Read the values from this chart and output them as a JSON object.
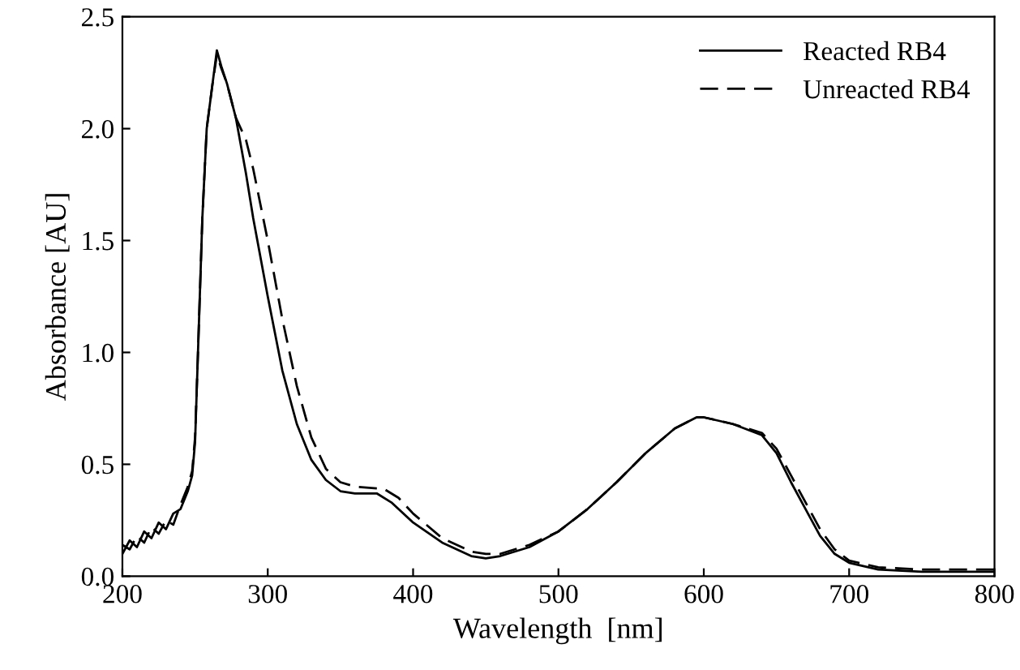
{
  "chart_data": {
    "type": "line",
    "xlabel": "Wavelength  [nm]",
    "ylabel": "Absorbance [AU]",
    "xlim": [
      200,
      800
    ],
    "ylim": [
      0,
      2.5
    ],
    "xticks": [
      200,
      300,
      400,
      500,
      600,
      700,
      800
    ],
    "yticks": [
      {
        "value": 0,
        "label": "0.0"
      },
      {
        "value": 0.5,
        "label": "0.5"
      },
      {
        "value": 1,
        "label": "1.0"
      },
      {
        "value": 1.5,
        "label": "1.5"
      },
      {
        "value": 2,
        "label": "2.0"
      },
      {
        "value": 2.5,
        "label": "2.5"
      }
    ],
    "legend": "top right",
    "grid": false,
    "series": [
      {
        "name": "Reacted RB4",
        "color": "#000000",
        "line_style": "solid",
        "x": [
          200,
          205,
          210,
          215,
          220,
          225,
          230,
          235,
          240,
          245,
          248,
          250,
          252,
          255,
          258,
          262,
          265,
          268,
          272,
          278,
          285,
          290,
          300,
          310,
          320,
          330,
          340,
          350,
          360,
          375,
          385,
          400,
          420,
          440,
          450,
          460,
          480,
          500,
          520,
          540,
          560,
          580,
          595,
          600,
          620,
          640,
          650,
          660,
          670,
          680,
          690,
          700,
          720,
          750,
          800
        ],
        "values": [
          0.1,
          0.16,
          0.13,
          0.2,
          0.17,
          0.24,
          0.21,
          0.28,
          0.3,
          0.38,
          0.45,
          0.6,
          1.0,
          1.6,
          2.0,
          2.2,
          2.35,
          2.28,
          2.2,
          2.05,
          1.8,
          1.6,
          1.25,
          0.92,
          0.68,
          0.52,
          0.43,
          0.38,
          0.37,
          0.37,
          0.33,
          0.24,
          0.15,
          0.09,
          0.08,
          0.09,
          0.13,
          0.2,
          0.3,
          0.42,
          0.55,
          0.66,
          0.71,
          0.71,
          0.68,
          0.63,
          0.55,
          0.42,
          0.3,
          0.18,
          0.1,
          0.06,
          0.03,
          0.02,
          0.02
        ]
      },
      {
        "name": "Unreacted RB4",
        "color": "#000000",
        "line_style": "dashed",
        "x": [
          200,
          205,
          210,
          215,
          220,
          225,
          230,
          235,
          240,
          245,
          248,
          250,
          252,
          255,
          258,
          262,
          265,
          268,
          272,
          278,
          285,
          290,
          300,
          310,
          320,
          330,
          340,
          350,
          360,
          380,
          390,
          400,
          420,
          440,
          450,
          460,
          480,
          500,
          520,
          540,
          560,
          580,
          595,
          600,
          620,
          640,
          650,
          660,
          670,
          680,
          690,
          700,
          720,
          750,
          800
        ],
        "values": [
          0.14,
          0.12,
          0.18,
          0.15,
          0.22,
          0.19,
          0.25,
          0.23,
          0.32,
          0.4,
          0.47,
          0.62,
          1.0,
          1.6,
          2.0,
          2.2,
          2.33,
          2.27,
          2.2,
          2.05,
          1.95,
          1.82,
          1.5,
          1.15,
          0.85,
          0.62,
          0.48,
          0.42,
          0.4,
          0.39,
          0.35,
          0.28,
          0.17,
          0.11,
          0.1,
          0.1,
          0.14,
          0.2,
          0.3,
          0.42,
          0.55,
          0.66,
          0.71,
          0.71,
          0.68,
          0.64,
          0.57,
          0.45,
          0.33,
          0.21,
          0.12,
          0.07,
          0.04,
          0.03,
          0.03
        ]
      }
    ]
  }
}
